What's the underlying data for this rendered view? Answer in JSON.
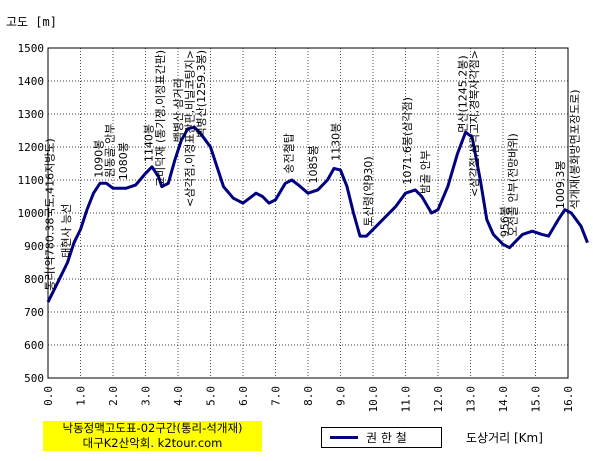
{
  "chart_data": {
    "type": "line",
    "ylabel": "고도 [m]",
    "xlabel": "도상거리 [Km]",
    "xlim": [
      0,
      16
    ],
    "ylim": [
      500,
      1500
    ],
    "x_ticks": [
      "0.0",
      "1.0",
      "2.0",
      "3.0",
      "4.0",
      "5.0",
      "6.0",
      "7.0",
      "8.0",
      "9.0",
      "10.0",
      "11.0",
      "12.0",
      "13.0",
      "14.0",
      "15.0",
      "16.0"
    ],
    "y_ticks": [
      "1500",
      "1400",
      "1300",
      "1200",
      "1100",
      "1000",
      "900",
      "800",
      "700",
      "600",
      "500"
    ],
    "grid": true,
    "series": [
      {
        "name": "권 한 철",
        "color": "#000080",
        "points": [
          [
            0.0,
            730
          ],
          [
            0.3,
            790
          ],
          [
            0.6,
            850
          ],
          [
            0.8,
            910
          ],
          [
            1.0,
            950
          ],
          [
            1.2,
            1010
          ],
          [
            1.4,
            1060
          ],
          [
            1.6,
            1090
          ],
          [
            1.8,
            1090
          ],
          [
            2.0,
            1075
          ],
          [
            2.4,
            1075
          ],
          [
            2.7,
            1085
          ],
          [
            3.0,
            1120
          ],
          [
            3.2,
            1140
          ],
          [
            3.4,
            1110
          ],
          [
            3.5,
            1080
          ],
          [
            3.7,
            1090
          ],
          [
            3.9,
            1160
          ],
          [
            4.1,
            1220
          ],
          [
            4.3,
            1255
          ],
          [
            4.5,
            1260
          ],
          [
            4.7,
            1240
          ],
          [
            5.0,
            1200
          ],
          [
            5.2,
            1140
          ],
          [
            5.4,
            1080
          ],
          [
            5.7,
            1045
          ],
          [
            6.0,
            1030
          ],
          [
            6.2,
            1045
          ],
          [
            6.4,
            1060
          ],
          [
            6.6,
            1050
          ],
          [
            6.8,
            1030
          ],
          [
            7.0,
            1040
          ],
          [
            7.3,
            1090
          ],
          [
            7.5,
            1100
          ],
          [
            7.7,
            1085
          ],
          [
            8.0,
            1060
          ],
          [
            8.3,
            1070
          ],
          [
            8.6,
            1100
          ],
          [
            8.8,
            1135
          ],
          [
            9.0,
            1130
          ],
          [
            9.2,
            1080
          ],
          [
            9.4,
            1000
          ],
          [
            9.6,
            930
          ],
          [
            9.8,
            930
          ],
          [
            10.1,
            960
          ],
          [
            10.4,
            990
          ],
          [
            10.7,
            1020
          ],
          [
            11.0,
            1060
          ],
          [
            11.3,
            1070
          ],
          [
            11.5,
            1050
          ],
          [
            11.8,
            1000
          ],
          [
            12.0,
            1010
          ],
          [
            12.3,
            1080
          ],
          [
            12.6,
            1180
          ],
          [
            12.85,
            1245
          ],
          [
            13.05,
            1230
          ],
          [
            13.3,
            1100
          ],
          [
            13.5,
            980
          ],
          [
            13.7,
            935
          ],
          [
            14.0,
            905
          ],
          [
            14.2,
            895
          ],
          [
            14.4,
            915
          ],
          [
            14.6,
            935
          ],
          [
            14.9,
            945
          ],
          [
            15.2,
            935
          ],
          [
            15.4,
            930
          ],
          [
            15.7,
            980
          ],
          [
            15.9,
            1010
          ],
          [
            16.1,
            1000
          ],
          [
            16.4,
            960
          ],
          [
            16.6,
            910
          ]
        ]
      }
    ],
    "annotations": [
      {
        "text": "통리(약780.38국도,416지방도)",
        "x": 0.05
      },
      {
        "text": "태현사 능선",
        "x": 0.55
      },
      {
        "text": "1090봉",
        "x": 1.55
      },
      {
        "text": "원동골 안부",
        "x": 1.9
      },
      {
        "text": "1080봉",
        "x": 2.3
      },
      {
        "text": "1140봉",
        "x": 3.1
      },
      {
        "text": "고비덕재 (통기쟁,이정표간판)",
        "x": 3.45
      },
      {
        "text": "백병산 삼거리",
        "x": 4.0
      },
      {
        "text": "<삼각점,이정표간판,비닐코팅지>",
        "x": 4.35
      },
      {
        "text": "백병산(1259.3봉)",
        "x": 4.7
      },
      {
        "text": "송전철탑",
        "x": 7.4
      },
      {
        "text": "1085봉",
        "x": 8.15
      },
      {
        "text": "1130봉",
        "x": 8.85
      },
      {
        "text": "토산령(약930)",
        "x": 9.85
      },
      {
        "text": "1071.6봉(삼각점)",
        "x": 11.05
      },
      {
        "text": "밤골 안부",
        "x": 11.6
      },
      {
        "text": "면산(1245.2봉)",
        "x": 12.75
      },
      {
        "text": "<삼각점,삼각고지,경북사각점>",
        "x": 13.1
      },
      {
        "text": "956봉",
        "x": 14.05
      },
      {
        "text": "오전골 안부(전망바위)",
        "x": 14.3
      },
      {
        "text": "1009.3봉",
        "x": 15.75
      },
      {
        "text": "석개재(봉화방면포장도로)",
        "x": 16.2
      }
    ]
  },
  "footer": {
    "title": "낙동정맥고도표-02구간(통리-석개재)",
    "credit": "대구K2산악회. k2tour.com"
  },
  "legend": {
    "label": "권 한 철"
  }
}
